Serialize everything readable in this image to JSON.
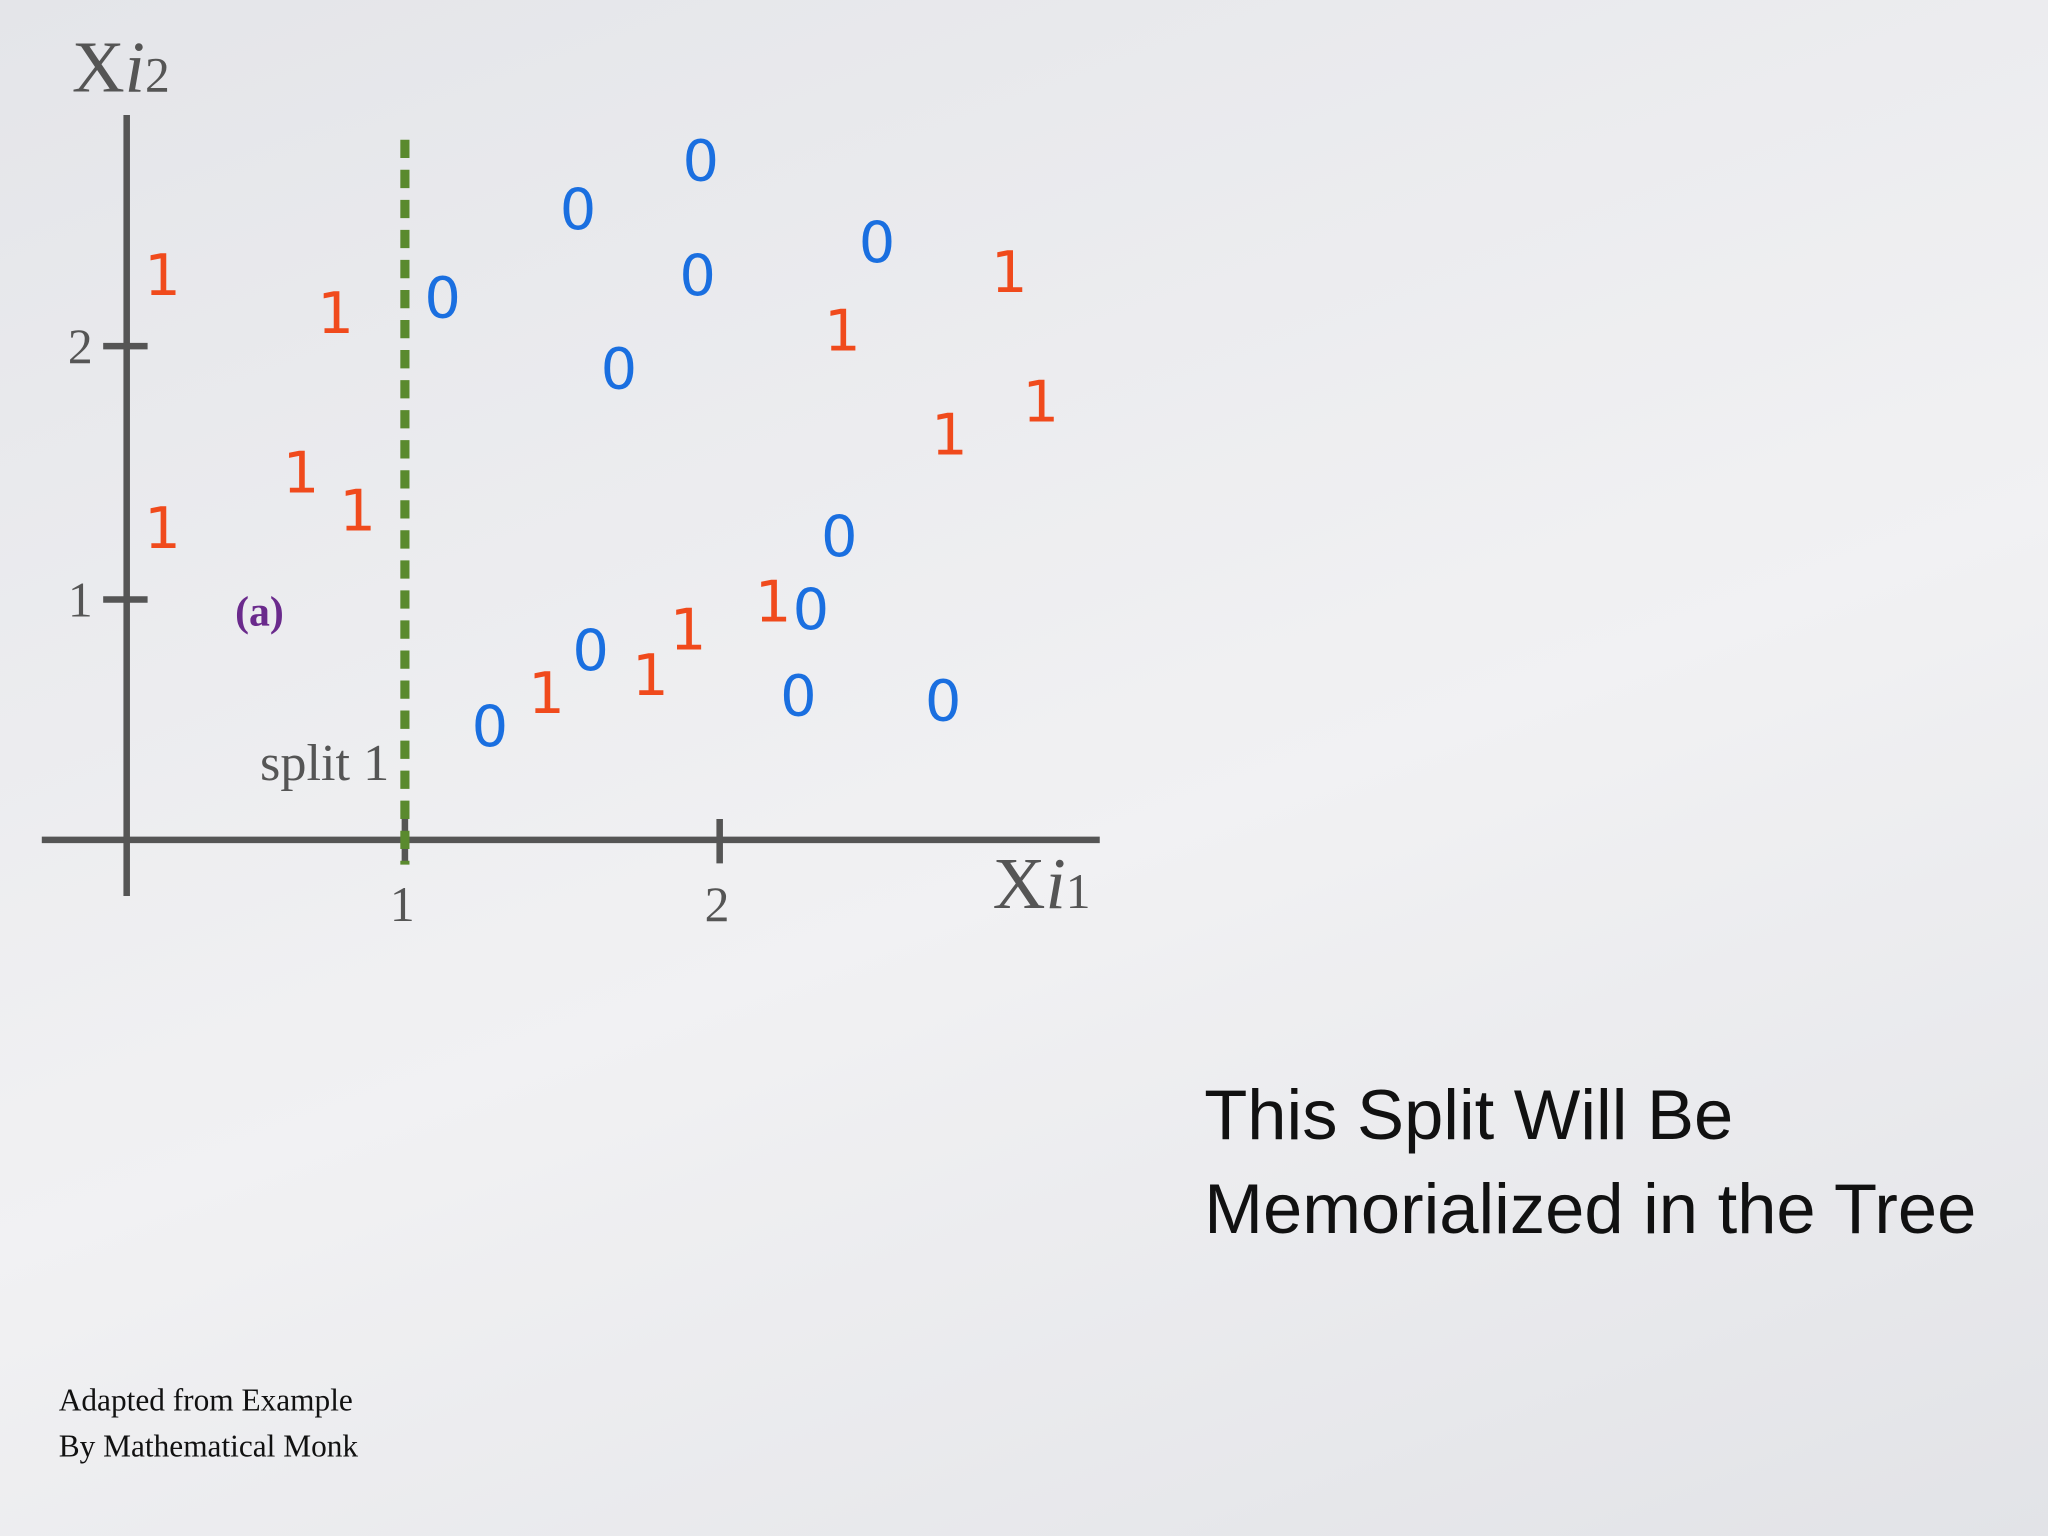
{
  "chart_data": {
    "type": "scatter",
    "xlabel": [
      "X",
      "i",
      "1"
    ],
    "ylabel": [
      "X",
      "i",
      "2"
    ],
    "xlim": [
      -0.15,
      3.2
    ],
    "ylim": [
      -0.16,
      2.9
    ],
    "xticks": [
      1,
      2
    ],
    "yticks": [
      1,
      2
    ],
    "split_x": 1,
    "split_label": "split 1",
    "panel_label": "(a)",
    "series": [
      {
        "marker": "1",
        "color": "#f04a1c",
        "x": [
          0.23,
          0.78,
          0.67,
          0.85,
          0.23,
          1.45,
          1.78,
          1.9,
          2.17,
          2.39,
          2.73,
          2.92,
          3.02
        ],
        "values": [
          2.28,
          2.13,
          1.5,
          1.35,
          1.28,
          0.63,
          0.7,
          0.88,
          0.99,
          2.06,
          1.65,
          2.29,
          1.78
        ]
      },
      {
        "marker": "0",
        "color": "#1a6fe0",
        "x": [
          1.94,
          1.55,
          1.12,
          1.93,
          2.5,
          1.68,
          2.38,
          2.29,
          1.59,
          1.27,
          2.25,
          2.71
        ],
        "values": [
          2.73,
          2.54,
          2.19,
          2.28,
          2.41,
          1.91,
          1.25,
          0.96,
          0.8,
          0.5,
          0.62,
          0.6
        ]
      }
    ]
  },
  "caption": [
    "This Split Will Be",
    "Memorialized in the Tree"
  ],
  "credit": [
    "Adapted from Example",
    "By Mathematical Monk"
  ]
}
